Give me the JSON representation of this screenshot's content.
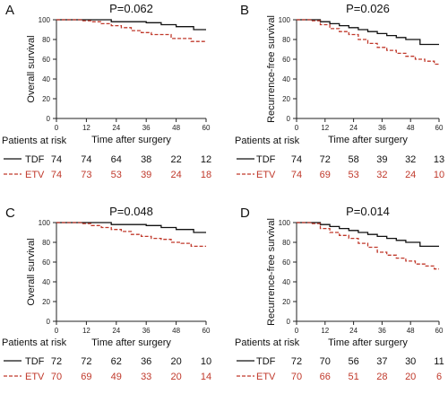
{
  "colors": {
    "tdf": "#111111",
    "etv": "#c0392b",
    "axis": "#222222"
  },
  "risk_header": "Patients at risk",
  "chart_data": [
    {
      "type": "line",
      "panel": "A",
      "pvalue": "P=0.062",
      "xlabel": "Time after surgery",
      "ylabel": "Overall survival",
      "xlim": [
        0,
        60
      ],
      "ylim": [
        0,
        100
      ],
      "xticks": [
        0,
        12,
        24,
        36,
        48,
        60
      ],
      "yticks": [
        0,
        20,
        40,
        60,
        80,
        100
      ],
      "series": [
        {
          "name": "TDF",
          "style": "solid",
          "x": [
            0,
            12,
            18,
            22,
            28,
            36,
            42,
            48,
            55,
            60
          ],
          "y": [
            100,
            100,
            100,
            98,
            98,
            97,
            95,
            93,
            90,
            90
          ]
        },
        {
          "name": "ETV",
          "style": "dashed",
          "x": [
            0,
            10,
            14,
            18,
            22,
            26,
            30,
            34,
            38,
            42,
            46,
            50,
            54,
            60
          ],
          "y": [
            100,
            99,
            98,
            96,
            94,
            92,
            89,
            87,
            85,
            85,
            81,
            81,
            78,
            78
          ]
        }
      ],
      "risk": [
        {
          "name": "TDF",
          "style": "solid",
          "values": [
            74,
            74,
            64,
            38,
            22,
            12
          ]
        },
        {
          "name": "ETV",
          "style": "dashed",
          "values": [
            74,
            73,
            53,
            39,
            24,
            18
          ]
        }
      ]
    },
    {
      "type": "line",
      "panel": "B",
      "pvalue": "P=0.026",
      "xlabel": "Time after surgery",
      "ylabel": "Recurrence-free survival",
      "xlim": [
        0,
        60
      ],
      "ylim": [
        0,
        100
      ],
      "xticks": [
        0,
        12,
        24,
        36,
        48,
        60
      ],
      "yticks": [
        0,
        20,
        40,
        60,
        80,
        100
      ],
      "series": [
        {
          "name": "TDF",
          "style": "solid",
          "x": [
            0,
            6,
            10,
            14,
            18,
            22,
            26,
            30,
            34,
            38,
            42,
            46,
            52,
            60
          ],
          "y": [
            100,
            100,
            98,
            96,
            94,
            92,
            90,
            88,
            86,
            84,
            82,
            80,
            75,
            75
          ]
        },
        {
          "name": "ETV",
          "style": "dashed",
          "x": [
            0,
            6,
            10,
            14,
            18,
            22,
            26,
            30,
            34,
            38,
            42,
            46,
            50,
            54,
            58,
            60
          ],
          "y": [
            100,
            99,
            95,
            91,
            88,
            85,
            80,
            76,
            72,
            69,
            66,
            63,
            60,
            58,
            55,
            55
          ]
        }
      ],
      "risk": [
        {
          "name": "TDF",
          "style": "solid",
          "values": [
            74,
            72,
            58,
            39,
            32,
            13
          ]
        },
        {
          "name": "ETV",
          "style": "dashed",
          "values": [
            74,
            69,
            53,
            32,
            24,
            10
          ]
        }
      ]
    },
    {
      "type": "line",
      "panel": "C",
      "pvalue": "P=0.048",
      "xlabel": "Time after surgery",
      "ylabel": "Overall survival",
      "xlim": [
        0,
        60
      ],
      "ylim": [
        0,
        100
      ],
      "xticks": [
        0,
        12,
        24,
        36,
        48,
        60
      ],
      "yticks": [
        0,
        20,
        40,
        60,
        80,
        100
      ],
      "series": [
        {
          "name": "TDF",
          "style": "solid",
          "x": [
            0,
            12,
            18,
            22,
            28,
            36,
            42,
            48,
            55,
            60
          ],
          "y": [
            100,
            100,
            100,
            98,
            98,
            97,
            95,
            93,
            90,
            90
          ]
        },
        {
          "name": "ETV",
          "style": "dashed",
          "x": [
            0,
            10,
            14,
            18,
            22,
            26,
            30,
            34,
            38,
            42,
            46,
            50,
            54,
            60
          ],
          "y": [
            100,
            99,
            97,
            95,
            93,
            91,
            88,
            86,
            84,
            83,
            80,
            79,
            76,
            76
          ]
        }
      ],
      "risk": [
        {
          "name": "TDF",
          "style": "solid",
          "values": [
            72,
            72,
            62,
            36,
            20,
            10
          ]
        },
        {
          "name": "ETV",
          "style": "dashed",
          "values": [
            70,
            69,
            49,
            33,
            20,
            14
          ]
        }
      ]
    },
    {
      "type": "line",
      "panel": "D",
      "pvalue": "P=0.014",
      "xlabel": "Time after surgery",
      "ylabel": "Recurrence-free survival",
      "xlim": [
        0,
        60
      ],
      "ylim": [
        0,
        100
      ],
      "xticks": [
        0,
        12,
        24,
        36,
        48,
        60
      ],
      "yticks": [
        0,
        20,
        40,
        60,
        80,
        100
      ],
      "series": [
        {
          "name": "TDF",
          "style": "solid",
          "x": [
            0,
            6,
            10,
            14,
            18,
            22,
            26,
            30,
            34,
            38,
            42,
            46,
            52,
            60
          ],
          "y": [
            100,
            100,
            98,
            96,
            94,
            92,
            90,
            88,
            86,
            84,
            82,
            80,
            76,
            76
          ]
        },
        {
          "name": "ETV",
          "style": "dashed",
          "x": [
            0,
            6,
            10,
            14,
            18,
            22,
            26,
            30,
            34,
            38,
            42,
            46,
            50,
            54,
            58,
            60
          ],
          "y": [
            100,
            99,
            94,
            90,
            87,
            84,
            79,
            75,
            70,
            67,
            64,
            61,
            58,
            56,
            53,
            53
          ]
        }
      ],
      "risk": [
        {
          "name": "TDF",
          "style": "solid",
          "values": [
            72,
            70,
            56,
            37,
            30,
            11
          ]
        },
        {
          "name": "ETV",
          "style": "dashed",
          "values": [
            70,
            66,
            51,
            28,
            20,
            6
          ]
        }
      ]
    }
  ]
}
